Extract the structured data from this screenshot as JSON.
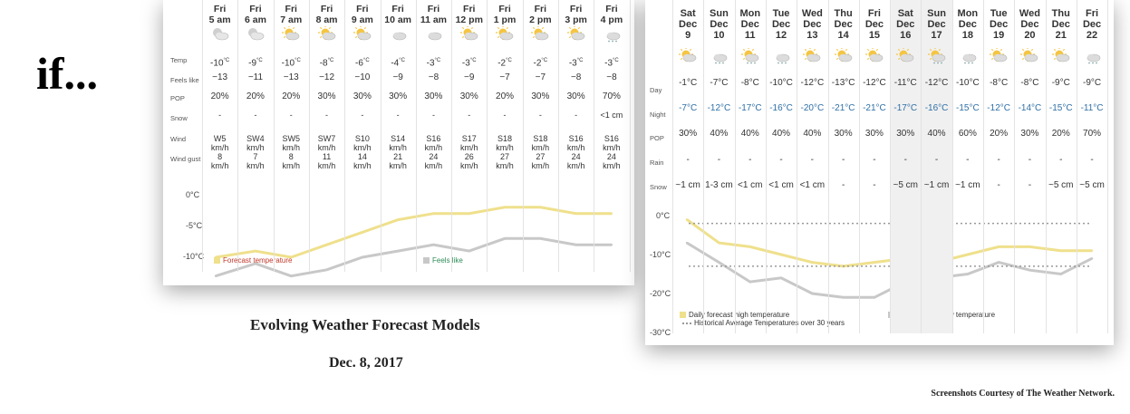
{
  "big_text": "if...",
  "caption_title": "Evolving Weather Forecast Models",
  "caption_date": "Dec. 8, 2017",
  "credit": "Screenshots Courtesy of The Weather Network.",
  "colors": {
    "forecast_line": "#efe08c",
    "feels_line": "#c8c8c8",
    "night_text": "#2f6fa6",
    "hourly_legend_text": "#c0392b",
    "hourly_legend2_text": "#2e8b57"
  },
  "chart_data": [
    {
      "type": "line",
      "panel": "hourly",
      "x": [
        "Fri 5 am",
        "Fri 6 am",
        "Fri 7 am",
        "Fri 8 am",
        "Fri 9 am",
        "Fri 10 am",
        "Fri 11 am",
        "Fri 12 pm",
        "Fri 1 pm",
        "Fri 2 pm",
        "Fri 3 pm",
        "Fri 4 pm"
      ],
      "series": [
        {
          "name": "Forecast temperature",
          "values": [
            -10,
            -9,
            -10,
            -8,
            -6,
            -4,
            -3,
            -3,
            -2,
            -2,
            -3,
            -3
          ]
        },
        {
          "name": "Feels like",
          "values": [
            -13,
            -11,
            -13,
            -12,
            -10,
            -9,
            -8,
            -9,
            -7,
            -7,
            -8,
            -8
          ]
        }
      ],
      "y_ticks": [
        "0°C",
        "-5°C",
        "-10°C"
      ],
      "ylim": [
        -10,
        0
      ],
      "table": {
        "days": [
          "Fri",
          "Fri",
          "Fri",
          "Fri",
          "Fri",
          "Fri",
          "Fri",
          "Fri",
          "Fri",
          "Fri",
          "Fri",
          "Fri"
        ],
        "times": [
          "5 am",
          "6 am",
          "7 am",
          "8 am",
          "9 am",
          "10 am",
          "11 am",
          "12 pm",
          "1 pm",
          "2 pm",
          "3 pm",
          "4 pm"
        ],
        "icons": [
          "night-cloudy-icon",
          "night-cloudy-icon",
          "partly-sunny-icon",
          "partly-sunny-icon",
          "partly-sunny-icon",
          "cloudy-icon",
          "cloudy-icon",
          "partly-sunny-icon",
          "partly-sunny-icon",
          "partly-sunny-icon",
          "partly-sunny-icon",
          "snow-cloud-icon"
        ],
        "row_labels": {
          "temp": "Temp",
          "feels": "Feels like",
          "pop": "POP",
          "snow": "Snow",
          "wind": "Wind",
          "gust": "Wind gust"
        },
        "temp": [
          "-10",
          "-9",
          "-10",
          "-8",
          "-6",
          "-4",
          "-3",
          "-3",
          "-2",
          "-2",
          "-3",
          "-3"
        ],
        "temp_unit": "°C",
        "feels": [
          "−13",
          "−11",
          "−13",
          "−12",
          "−10",
          "−9",
          "−8",
          "−9",
          "−7",
          "−7",
          "−8",
          "−8"
        ],
        "pop": [
          "20%",
          "20%",
          "20%",
          "30%",
          "30%",
          "30%",
          "30%",
          "30%",
          "20%",
          "30%",
          "30%",
          "70%"
        ],
        "snow": [
          "-",
          "-",
          "-",
          "-",
          "-",
          "-",
          "-",
          "-",
          "-",
          "-",
          "-",
          "<1 cm"
        ],
        "wind_dir": [
          "W5",
          "SW4",
          "SW5",
          "SW7",
          "S10",
          "S14",
          "S16",
          "S17",
          "S18",
          "S18",
          "S16",
          "S16"
        ],
        "wind_unit": "km/h",
        "gust": [
          "8",
          "7",
          "8",
          "11",
          "14",
          "21",
          "24",
          "26",
          "27",
          "27",
          "24",
          "24"
        ]
      },
      "legend": [
        "Forecast temperature",
        "Feels like"
      ]
    },
    {
      "type": "line",
      "panel": "daily",
      "x": [
        "Sat Dec 9",
        "Sun Dec 10",
        "Mon Dec 11",
        "Tue Dec 12",
        "Wed Dec 13",
        "Thu Dec 14",
        "Fri Dec 15",
        "Sat Dec 16",
        "Sun Dec 17",
        "Mon Dec 18",
        "Tue Dec 19",
        "Wed Dec 20",
        "Thu Dec 21",
        "Fri Dec 22"
      ],
      "series": [
        {
          "name": "Daily forecast high temperature",
          "values": [
            -1,
            -7,
            -8,
            -10,
            -12,
            -13,
            -12,
            -11,
            -12,
            -10,
            -8,
            -8,
            -9,
            -9
          ]
        },
        {
          "name": "Daily forecast low temperature",
          "values": [
            -7,
            -12,
            -17,
            -16,
            -20,
            -21,
            -21,
            -17,
            -16,
            -15,
            -12,
            -14,
            -15,
            -11
          ]
        },
        {
          "name": "Historical Average Temperatures over 30 years",
          "values": [
            -2,
            -2,
            -2,
            -2,
            -2,
            -2,
            -2,
            -2,
            -2,
            -2,
            -2,
            -2,
            -2,
            -2
          ],
          "style": "dotted"
        },
        {
          "values": [
            -13,
            -13,
            -13,
            -13,
            -13,
            -13,
            -13,
            -13,
            -13,
            -13,
            -13,
            -13,
            -13,
            -13
          ],
          "style": "dotted"
        }
      ],
      "y_ticks": [
        "0°C",
        "-10°C",
        "-20°C",
        "-30°C"
      ],
      "ylim": [
        -30,
        0
      ],
      "table": {
        "dows": [
          "Sat",
          "Sun",
          "Mon",
          "Tue",
          "Wed",
          "Thu",
          "Fri",
          "Sat",
          "Sun",
          "Mon",
          "Tue",
          "Wed",
          "Thu",
          "Fri"
        ],
        "months": [
          "Dec",
          "Dec",
          "Dec",
          "Dec",
          "Dec",
          "Dec",
          "Dec",
          "Dec",
          "Dec",
          "Dec",
          "Dec",
          "Dec",
          "Dec",
          "Dec"
        ],
        "dates": [
          "9",
          "10",
          "11",
          "12",
          "13",
          "14",
          "15",
          "16",
          "17",
          "18",
          "19",
          "20",
          "21",
          "22"
        ],
        "icons": [
          "partly-sunny-icon",
          "snow-cloud-icon",
          "partly-sunny-snow-icon",
          "snow-cloud-icon",
          "partly-sunny-icon",
          "partly-sunny-icon",
          "partly-sunny-icon",
          "partly-sunny-icon",
          "partly-sunny-snow-icon",
          "snow-cloud-icon",
          "partly-sunny-icon",
          "partly-sunny-icon",
          "partly-sunny-icon",
          "snow-cloud-icon"
        ],
        "row_labels": {
          "day": "Day",
          "night": "Night",
          "pop": "POP",
          "rain": "Rain",
          "snow": "Snow"
        },
        "day": [
          "-1°C",
          "-7°C",
          "-8°C",
          "-10°C",
          "-12°C",
          "-13°C",
          "-12°C",
          "-11°C",
          "-12°C",
          "-10°C",
          "-8°C",
          "-8°C",
          "-9°C",
          "-9°C"
        ],
        "night": [
          "-7°C",
          "-12°C",
          "-17°C",
          "-16°C",
          "-20°C",
          "-21°C",
          "-21°C",
          "-17°C",
          "-16°C",
          "-15°C",
          "-12°C",
          "-14°C",
          "-15°C",
          "-11°C"
        ],
        "pop": [
          "30%",
          "40%",
          "40%",
          "40%",
          "40%",
          "30%",
          "30%",
          "30%",
          "40%",
          "60%",
          "20%",
          "30%",
          "20%",
          "70%"
        ],
        "rain": [
          "-",
          "-",
          "-",
          "-",
          "-",
          "-",
          "-",
          "-",
          "-",
          "-",
          "-",
          "-",
          "-",
          "-"
        ],
        "snow": [
          "~1 cm",
          "1-3 cm",
          "<1 cm",
          "<1 cm",
          "<1 cm",
          "-",
          "-",
          "~5 cm",
          "~1 cm",
          "~1 cm",
          "-",
          "-",
          "~5 cm",
          "~5 cm"
        ],
        "weekend_cols": [
          7,
          8
        ]
      },
      "legend": [
        "Daily forecast high temperature",
        "Historical Average Temperatures over 30 years",
        "Daily forecast low temperature"
      ]
    }
  ]
}
